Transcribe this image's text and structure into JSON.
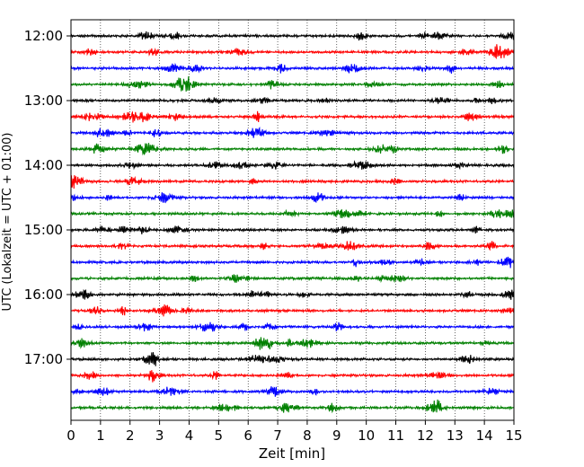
{
  "chart_data": {
    "type": "line",
    "subtype": "helicorder",
    "xlabel": "Zeit  [min]",
    "ylabel": "UTC (Lokalzeit = UTC + 01:00)",
    "xlim": [
      0,
      15
    ],
    "x_ticks": [
      "0",
      "1",
      "2",
      "3",
      "4",
      "5",
      "6",
      "7",
      "8",
      "9",
      "10",
      "11",
      "12",
      "13",
      "14",
      "15"
    ],
    "y_ticks": [
      "12:00",
      "13:00",
      "14:00",
      "15:00",
      "16:00",
      "17:00"
    ],
    "grid": "vertical dotted",
    "trace_colors": [
      "#000000",
      "#ff0000",
      "#0000ff",
      "#008000"
    ],
    "traces": [
      {
        "start": "12:00",
        "color": "#000000"
      },
      {
        "start": "12:15",
        "color": "#ff0000"
      },
      {
        "start": "12:30",
        "color": "#0000ff"
      },
      {
        "start": "12:45",
        "color": "#008000"
      },
      {
        "start": "13:00",
        "color": "#000000"
      },
      {
        "start": "13:15",
        "color": "#ff0000"
      },
      {
        "start": "13:30",
        "color": "#0000ff"
      },
      {
        "start": "13:45",
        "color": "#008000"
      },
      {
        "start": "14:00",
        "color": "#000000"
      },
      {
        "start": "14:15",
        "color": "#ff0000"
      },
      {
        "start": "14:30",
        "color": "#0000ff"
      },
      {
        "start": "14:45",
        "color": "#008000"
      },
      {
        "start": "15:00",
        "color": "#000000"
      },
      {
        "start": "15:15",
        "color": "#ff0000"
      },
      {
        "start": "15:30",
        "color": "#0000ff"
      },
      {
        "start": "15:45",
        "color": "#008000"
      },
      {
        "start": "16:00",
        "color": "#000000"
      },
      {
        "start": "16:15",
        "color": "#ff0000"
      },
      {
        "start": "16:30",
        "color": "#0000ff"
      },
      {
        "start": "16:45",
        "color": "#008000"
      },
      {
        "start": "17:00",
        "color": "#000000"
      },
      {
        "start": "17:15",
        "color": "#ff0000"
      },
      {
        "start": "17:30",
        "color": "#0000ff"
      },
      {
        "start": "17:45",
        "color": "#008000"
      }
    ]
  }
}
